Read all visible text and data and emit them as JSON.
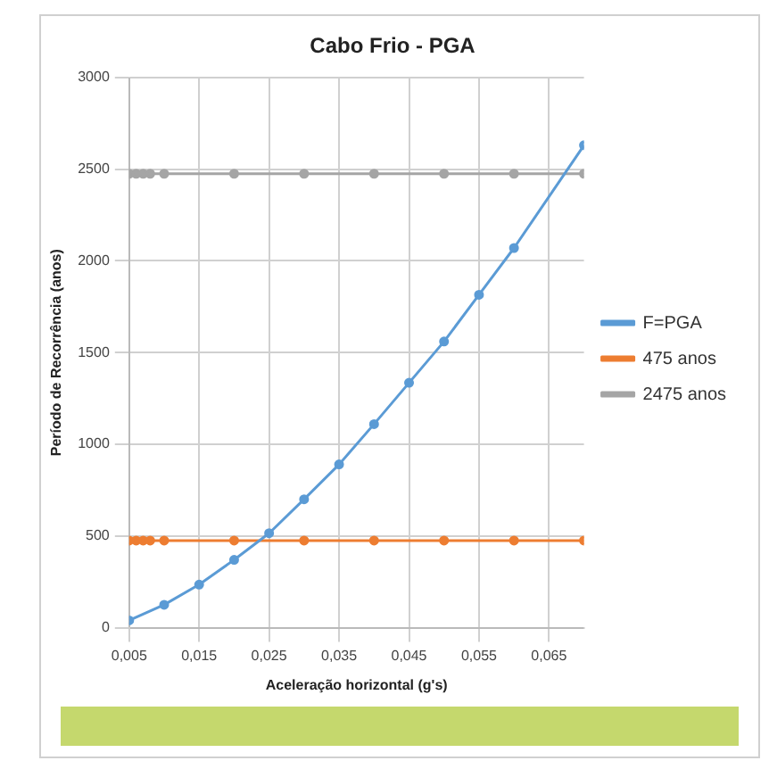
{
  "chart_data": {
    "type": "line",
    "title": "Cabo Frio - PGA",
    "xlabel": "Aceleração horizontal (g's)",
    "ylabel": "Período de Recorrência (anos)",
    "xlim": [
      0.005,
      0.07
    ],
    "xticks": [
      {
        "value": 0.005,
        "label": "0,005"
      },
      {
        "value": 0.015,
        "label": "0,015"
      },
      {
        "value": 0.025,
        "label": "0,025"
      },
      {
        "value": 0.035,
        "label": "0,035"
      },
      {
        "value": 0.045,
        "label": "0,045"
      },
      {
        "value": 0.055,
        "label": "0,055"
      },
      {
        "value": 0.065,
        "label": "0,065"
      }
    ],
    "ylim": [
      0,
      3000
    ],
    "yticks": [
      0,
      500,
      1000,
      1500,
      2000,
      2500,
      3000
    ],
    "grid": true,
    "legend": "right",
    "marker": "circle",
    "series": [
      {
        "name": "F=PGA",
        "color": "#5b9bd5",
        "x": [
          0.005,
          0.01,
          0.015,
          0.02,
          0.025,
          0.03,
          0.035,
          0.04,
          0.045,
          0.05,
          0.055,
          0.06,
          0.07
        ],
        "values": [
          40,
          125,
          235,
          370,
          515,
          700,
          890,
          1110,
          1335,
          1560,
          1815,
          2070,
          2630
        ]
      },
      {
        "name": "475 anos",
        "color": "#ed7d31",
        "x": [
          0.005,
          0.006,
          0.007,
          0.008,
          0.01,
          0.02,
          0.03,
          0.04,
          0.05,
          0.06,
          0.07
        ],
        "values": [
          475,
          475,
          475,
          475,
          475,
          475,
          475,
          475,
          475,
          475,
          475
        ]
      },
      {
        "name": "2475 anos",
        "color": "#a5a5a5",
        "x": [
          0.005,
          0.006,
          0.007,
          0.008,
          0.01,
          0.02,
          0.03,
          0.04,
          0.05,
          0.06,
          0.07
        ],
        "values": [
          2475,
          2475,
          2475,
          2475,
          2475,
          2475,
          2475,
          2475,
          2475,
          2475,
          2475
        ]
      }
    ]
  }
}
